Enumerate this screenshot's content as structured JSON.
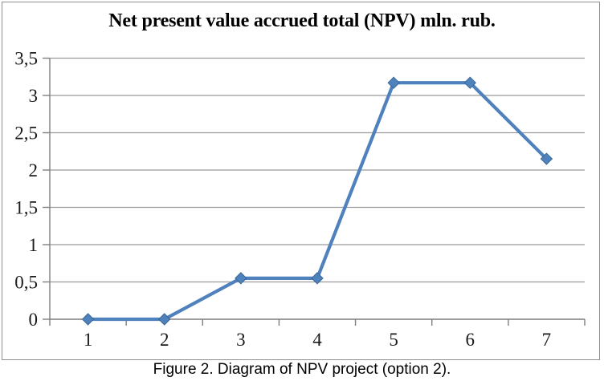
{
  "caption": "Figure 2. Diagram of NPV project (option 2).",
  "chart_data": {
    "type": "line",
    "title": "Net present value accrued total (NPV) mln. rub.",
    "categories": [
      "1",
      "2",
      "3",
      "4",
      "5",
      "6",
      "7"
    ],
    "values": [
      0,
      0,
      0.55,
      0.55,
      3.17,
      3.17,
      2.15
    ],
    "xlabel": "",
    "ylabel": "",
    "ylim": [
      0,
      3.5
    ],
    "ytick_interval": 0.5,
    "ytick_labels": [
      "0",
      "0,5",
      "1",
      "1,5",
      "2",
      "2,5",
      "3",
      "3,5"
    ],
    "decimal_separator": ",",
    "grid": true,
    "legend": "none",
    "marker": "diamond",
    "colors": {
      "line": "#4F81BD",
      "marker_fill": "#4F81BD",
      "marker_edge": "#3A6795",
      "gridline": "#9b9b9b",
      "axis": "#7f7f7f",
      "text": "#000000",
      "frame_border": "#8f8f8f",
      "background": "#ffffff"
    }
  }
}
